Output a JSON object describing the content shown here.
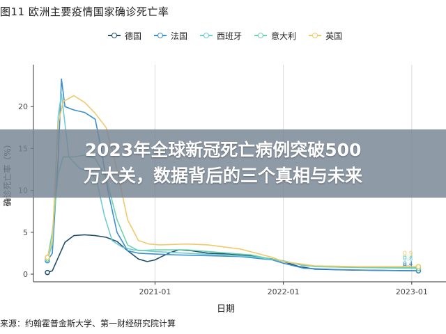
{
  "figure_title": "图11 欧洲主要疫情国家确诊死亡率",
  "source_note": "来源：约翰霍普金斯大学、第一财经研究院计算",
  "overlay": {
    "line1": "2023年全球新冠死亡病例突破500",
    "line2": "万大关，数据背后的三个真相与未来"
  },
  "colors": {
    "germany": "#1f4e6e",
    "france": "#3a8fcf",
    "spain": "#6fcbd4",
    "italy": "#6dd3ad",
    "uk": "#f0c96a",
    "grid": "#d9d9d9",
    "axis": "#333333",
    "banner": "#76849488"
  },
  "chart_data": {
    "type": "line",
    "title": "图11 欧洲主要疫情国家确诊死亡率",
    "xlabel": "日期",
    "ylabel": "确诊死亡率（%）",
    "x_ticks": [
      "2021-01",
      "2022-01",
      "2023-01"
    ],
    "y_ticks": [
      "0",
      "5",
      "10",
      "15",
      "20"
    ],
    "ylim": [
      0,
      25
    ],
    "xlim": [
      "2020-03-01",
      "2023-01-31"
    ],
    "grid": true,
    "legend_position": "top",
    "series": [
      {
        "name": "德国",
        "color_key": "germany",
        "end_label": "0.4",
        "points": [
          [
            "2020-03-01",
            0.2
          ],
          [
            "2020-03-15",
            0.4
          ],
          [
            "2020-04-01",
            2.0
          ],
          [
            "2020-04-20",
            3.8
          ],
          [
            "2020-05-15",
            4.6
          ],
          [
            "2020-06-15",
            4.7
          ],
          [
            "2020-07-15",
            4.6
          ],
          [
            "2020-08-15",
            4.4
          ],
          [
            "2020-09-15",
            3.9
          ],
          [
            "2020-10-15",
            2.8
          ],
          [
            "2020-11-15",
            1.8
          ],
          [
            "2020-12-10",
            1.5
          ],
          [
            "2021-01-01",
            1.7
          ],
          [
            "2021-01-20",
            2.1
          ],
          [
            "2021-02-15",
            2.6
          ],
          [
            "2021-03-10",
            2.9
          ],
          [
            "2021-04-15",
            2.8
          ],
          [
            "2021-06-01",
            2.5
          ],
          [
            "2021-08-01",
            2.4
          ],
          [
            "2021-10-01",
            2.2
          ],
          [
            "2021-12-01",
            1.8
          ],
          [
            "2022-01-01",
            1.5
          ],
          [
            "2022-02-15",
            0.9
          ],
          [
            "2022-04-01",
            0.6
          ],
          [
            "2022-07-01",
            0.5
          ],
          [
            "2022-10-01",
            0.45
          ],
          [
            "2023-01-20",
            0.4
          ]
        ]
      },
      {
        "name": "法国",
        "color_key": "france",
        "end_label": "0.4",
        "points": [
          [
            "2020-03-01",
            1.6
          ],
          [
            "2020-03-15",
            2.5
          ],
          [
            "2020-04-01",
            14.0
          ],
          [
            "2020-04-10",
            23.3
          ],
          [
            "2020-04-20",
            20.0
          ],
          [
            "2020-05-15",
            19.6
          ],
          [
            "2020-06-15",
            19.3
          ],
          [
            "2020-07-15",
            18.5
          ],
          [
            "2020-08-01",
            15.0
          ],
          [
            "2020-08-20",
            10.0
          ],
          [
            "2020-09-15",
            5.0
          ],
          [
            "2020-10-15",
            2.8
          ],
          [
            "2020-11-15",
            2.5
          ],
          [
            "2021-01-01",
            2.4
          ],
          [
            "2021-03-01",
            2.3
          ],
          [
            "2021-06-01",
            2.2
          ],
          [
            "2021-09-01",
            2.1
          ],
          [
            "2021-12-01",
            1.7
          ],
          [
            "2022-01-01",
            1.3
          ],
          [
            "2022-03-01",
            0.7
          ],
          [
            "2022-06-01",
            0.55
          ],
          [
            "2022-10-01",
            0.45
          ],
          [
            "2023-01-20",
            0.4
          ]
        ]
      },
      {
        "name": "西班牙",
        "color_key": "spain",
        "end_label": "0.8",
        "points": [
          [
            "2020-03-01",
            1.8
          ],
          [
            "2020-03-15",
            3.5
          ],
          [
            "2020-04-01",
            19.0
          ],
          [
            "2020-04-10",
            21.5
          ],
          [
            "2020-05-01",
            14.0
          ],
          [
            "2020-06-01",
            12.6
          ],
          [
            "2020-07-01",
            12.3
          ],
          [
            "2020-07-20",
            11.0
          ],
          [
            "2020-08-10",
            7.0
          ],
          [
            "2020-09-01",
            4.0
          ],
          [
            "2020-10-01",
            3.2
          ],
          [
            "2020-11-01",
            2.9
          ],
          [
            "2021-01-01",
            2.7
          ],
          [
            "2021-04-01",
            2.5
          ],
          [
            "2021-07-01",
            2.3
          ],
          [
            "2021-10-01",
            2.1
          ],
          [
            "2022-01-01",
            1.6
          ],
          [
            "2022-03-01",
            1.0
          ],
          [
            "2022-06-01",
            0.9
          ],
          [
            "2022-10-01",
            0.85
          ],
          [
            "2023-01-20",
            0.8
          ]
        ]
      },
      {
        "name": "意大利",
        "color_key": "italy",
        "end_label": "0.7",
        "points": [
          [
            "2020-03-01",
            1.8
          ],
          [
            "2020-03-15",
            5.0
          ],
          [
            "2020-04-01",
            12.0
          ],
          [
            "2020-04-15",
            14.0
          ],
          [
            "2020-05-15",
            14.0
          ],
          [
            "2020-06-15",
            14.2
          ],
          [
            "2020-07-15",
            13.8
          ],
          [
            "2020-08-15",
            11.5
          ],
          [
            "2020-09-15",
            6.5
          ],
          [
            "2020-10-15",
            3.5
          ],
          [
            "2020-11-15",
            2.8
          ],
          [
            "2021-01-01",
            2.9
          ],
          [
            "2021-04-01",
            2.9
          ],
          [
            "2021-07-01",
            2.6
          ],
          [
            "2021-10-01",
            2.3
          ],
          [
            "2022-01-01",
            1.5
          ],
          [
            "2022-04-01",
            0.9
          ],
          [
            "2022-08-01",
            0.8
          ],
          [
            "2023-01-20",
            0.7
          ]
        ]
      },
      {
        "name": "英国",
        "color_key": "uk",
        "end_label": "0.9",
        "points": [
          [
            "2020-03-01",
            2.0
          ],
          [
            "2020-03-15",
            4.0
          ],
          [
            "2020-04-01",
            18.0
          ],
          [
            "2020-04-15",
            20.6
          ],
          [
            "2020-05-15",
            21.3
          ],
          [
            "2020-06-15",
            20.5
          ],
          [
            "2020-07-15",
            19.2
          ],
          [
            "2020-08-15",
            17.5
          ],
          [
            "2020-09-15",
            12.5
          ],
          [
            "2020-10-15",
            6.5
          ],
          [
            "2020-11-15",
            4.0
          ],
          [
            "2020-12-15",
            3.6
          ],
          [
            "2021-01-15",
            3.5
          ],
          [
            "2021-04-01",
            3.6
          ],
          [
            "2021-06-01",
            3.5
          ],
          [
            "2021-09-01",
            3.0
          ],
          [
            "2021-12-01",
            2.0
          ],
          [
            "2022-01-01",
            1.5
          ],
          [
            "2022-04-01",
            1.0
          ],
          [
            "2022-08-01",
            0.9
          ],
          [
            "2023-01-20",
            0.9
          ]
        ]
      }
    ]
  }
}
